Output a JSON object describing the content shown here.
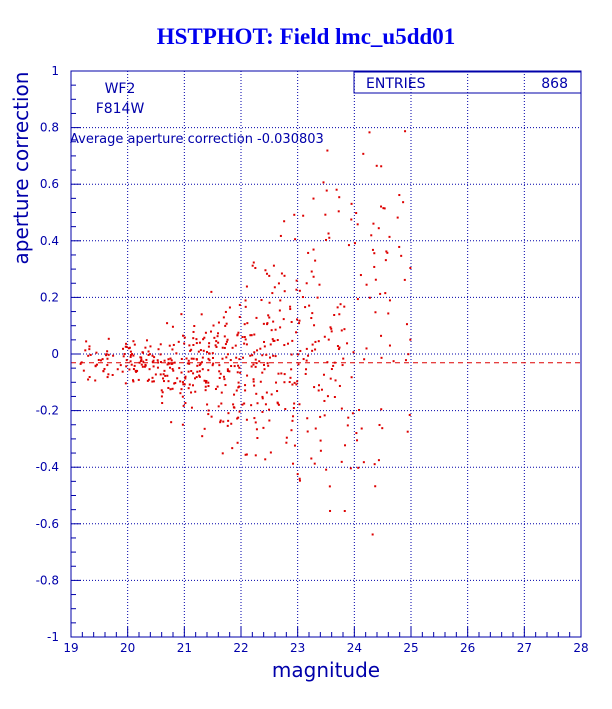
{
  "chart_data": {
    "type": "scatter",
    "title": "HSTPHOT: Field lmc_u5dd01",
    "xlabel": "magnitude",
    "ylabel": "aperture correction",
    "xlim": [
      19,
      28
    ],
    "ylim": [
      -1,
      1
    ],
    "x_ticks": [
      19,
      20,
      21,
      22,
      23,
      24,
      25,
      26,
      27,
      28
    ],
    "y_ticks": [
      -1,
      -0.8,
      -0.6,
      -0.4,
      -0.2,
      0,
      0.2,
      0.4,
      0.6,
      0.8,
      1
    ],
    "grid": "dotted",
    "annotations": [
      "WF2",
      "F814W",
      "Average aperture correction -0.030803"
    ],
    "stats_box": {
      "label": "ENTRIES",
      "value": "868"
    },
    "reference_line": {
      "y": -0.030803,
      "style": "dashed"
    },
    "marker_color": "#dd0000",
    "axis_color": "#0000aa",
    "title_color": "#0000ee",
    "n_points_plotted": 620,
    "point_density": [
      {
        "x": [
          19.1,
          19.9
        ],
        "y": [
          -0.12,
          0.05
        ],
        "count": 35
      },
      {
        "x": [
          19.9,
          20.6
        ],
        "y": [
          -0.1,
          0.05
        ],
        "count": 70
      },
      {
        "x": [
          20.6,
          21.3
        ],
        "y": [
          -0.22,
          0.12
        ],
        "count": 95
      },
      {
        "x": [
          21.3,
          22.0
        ],
        "y": [
          -0.3,
          0.2
        ],
        "count": 110
      },
      {
        "x": [
          22.0,
          22.6
        ],
        "y": [
          -0.35,
          0.35
        ],
        "count": 90
      },
      {
        "x": [
          22.6,
          23.2
        ],
        "y": [
          -0.45,
          0.45
        ],
        "count": 75
      },
      {
        "x": [
          23.2,
          23.9
        ],
        "y": [
          -0.55,
          0.6
        ],
        "count": 75
      },
      {
        "x": [
          23.9,
          24.5
        ],
        "y": [
          -0.75,
          0.9
        ],
        "count": 45
      },
      {
        "x": [
          24.5,
          25.0
        ],
        "y": [
          -0.45,
          0.75
        ],
        "count": 25
      }
    ]
  }
}
